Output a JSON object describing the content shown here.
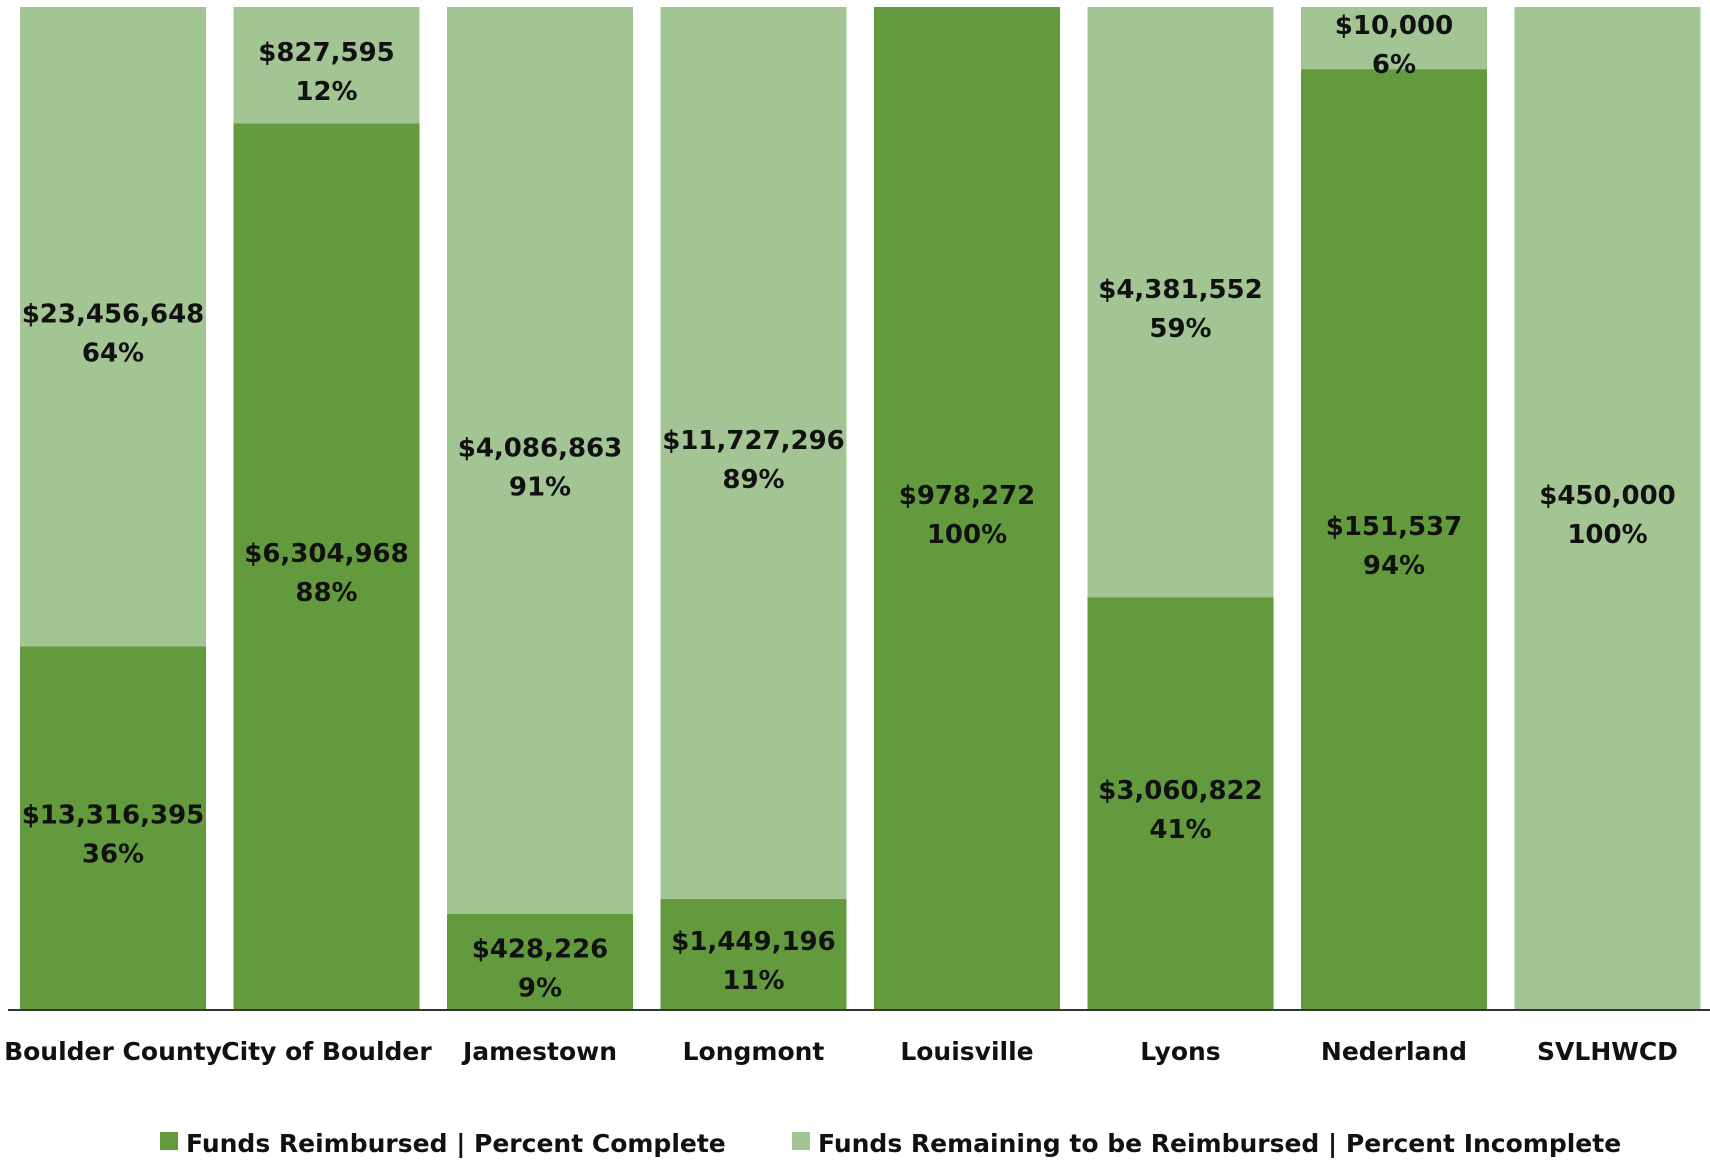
{
  "colors": {
    "reimbursed": "#629a3d",
    "remaining": "#a3c593",
    "axis": "#333333",
    "text": "#111111"
  },
  "chart_data": {
    "type": "bar",
    "stacked": true,
    "normalized_percent": true,
    "title": "",
    "xlabel": "",
    "ylabel": "",
    "ylim": [
      0,
      100
    ],
    "grid": false,
    "legend_position": "bottom",
    "categories": [
      "Boulder County",
      "City of Boulder",
      "Jamestown",
      "Longmont",
      "Louisville",
      "Lyons",
      "Nederland",
      "SVLHWCD"
    ],
    "series": [
      {
        "name": "Funds Reimbursed | Percent Complete",
        "color": "#629a3d",
        "amounts": [
          "$13,316,395",
          "$6,304,968",
          "$428,226",
          "$1,449,196",
          "$978,272",
          "$3,060,822",
          "$151,537",
          null
        ],
        "percent_labels": [
          "36%",
          "88%",
          "9%",
          "11%",
          "100%",
          "41%",
          "94%",
          null
        ],
        "values": [
          36.2,
          88.4,
          9.5,
          11.0,
          100,
          41.1,
          93.8,
          0
        ]
      },
      {
        "name": "Funds Remaining to be Reimbursed | Percent Incomplete",
        "color": "#a3c593",
        "amounts": [
          "$23,456,648",
          "$827,595",
          "$4,086,863",
          "$11,727,296",
          null,
          "$4,381,552",
          "$10,000",
          "$450,000"
        ],
        "percent_labels": [
          "64%",
          "12%",
          "91%",
          "89%",
          null,
          "59%",
          "6%",
          "100%"
        ],
        "values": [
          63.8,
          11.6,
          90.5,
          89.0,
          0,
          58.9,
          6.2,
          100
        ]
      }
    ]
  }
}
